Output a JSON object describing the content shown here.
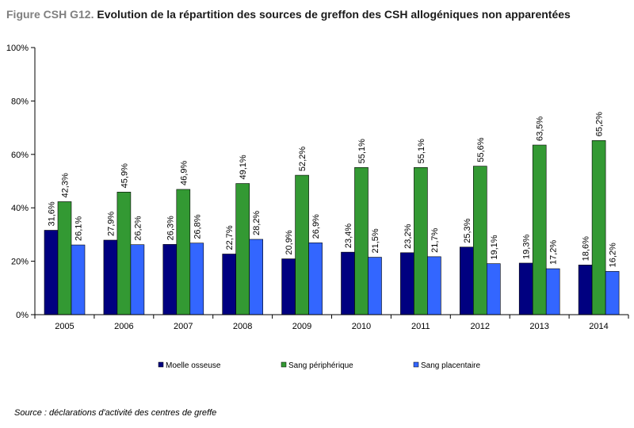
{
  "title": {
    "prefix": "Figure CSH G12.",
    "text": "Evolution de la répartition des sources de greffon des CSH allogéniques non apparentées"
  },
  "source": "Source : déclarations d'activité des centres de greffe",
  "chart_data": {
    "type": "bar",
    "categories": [
      "2005",
      "2006",
      "2007",
      "2008",
      "2009",
      "2010",
      "2011",
      "2012",
      "2013",
      "2014"
    ],
    "series": [
      {
        "name": "Moelle osseuse",
        "color": "#000080",
        "values": [
          31.6,
          27.9,
          26.3,
          22.7,
          20.9,
          23.4,
          23.2,
          25.3,
          19.3,
          18.6
        ],
        "labels": [
          "31,6%",
          "27,9%",
          "26,3%",
          "22,7%",
          "20,9%",
          "23,4%",
          "23,2%",
          "25,3%",
          "19,3%",
          "18,6%"
        ]
      },
      {
        "name": "Sang périphérique",
        "color": "#339933",
        "values": [
          42.3,
          45.9,
          46.9,
          49.1,
          52.2,
          55.1,
          55.1,
          55.6,
          63.5,
          65.2
        ],
        "labels": [
          "42,3%",
          "45,9%",
          "46,9%",
          "49,1%",
          "52,2%",
          "55,1%",
          "55,1%",
          "55,6%",
          "63,5%",
          "65,2%"
        ]
      },
      {
        "name": "Sang placentaire",
        "color": "#3366ff",
        "values": [
          26.1,
          26.2,
          26.8,
          28.2,
          26.9,
          21.5,
          21.7,
          19.1,
          17.2,
          16.2
        ],
        "labels": [
          "26,1%",
          "26,2%",
          "26,8%",
          "28,2%",
          "26,9%",
          "21,5%",
          "21,7%",
          "19,1%",
          "17,2%",
          "16,2%"
        ]
      }
    ],
    "ylim": [
      0,
      100
    ],
    "yticks": [
      "0%",
      "20%",
      "40%",
      "60%",
      "80%",
      "100%"
    ],
    "grid": false,
    "legend": "bottom"
  }
}
